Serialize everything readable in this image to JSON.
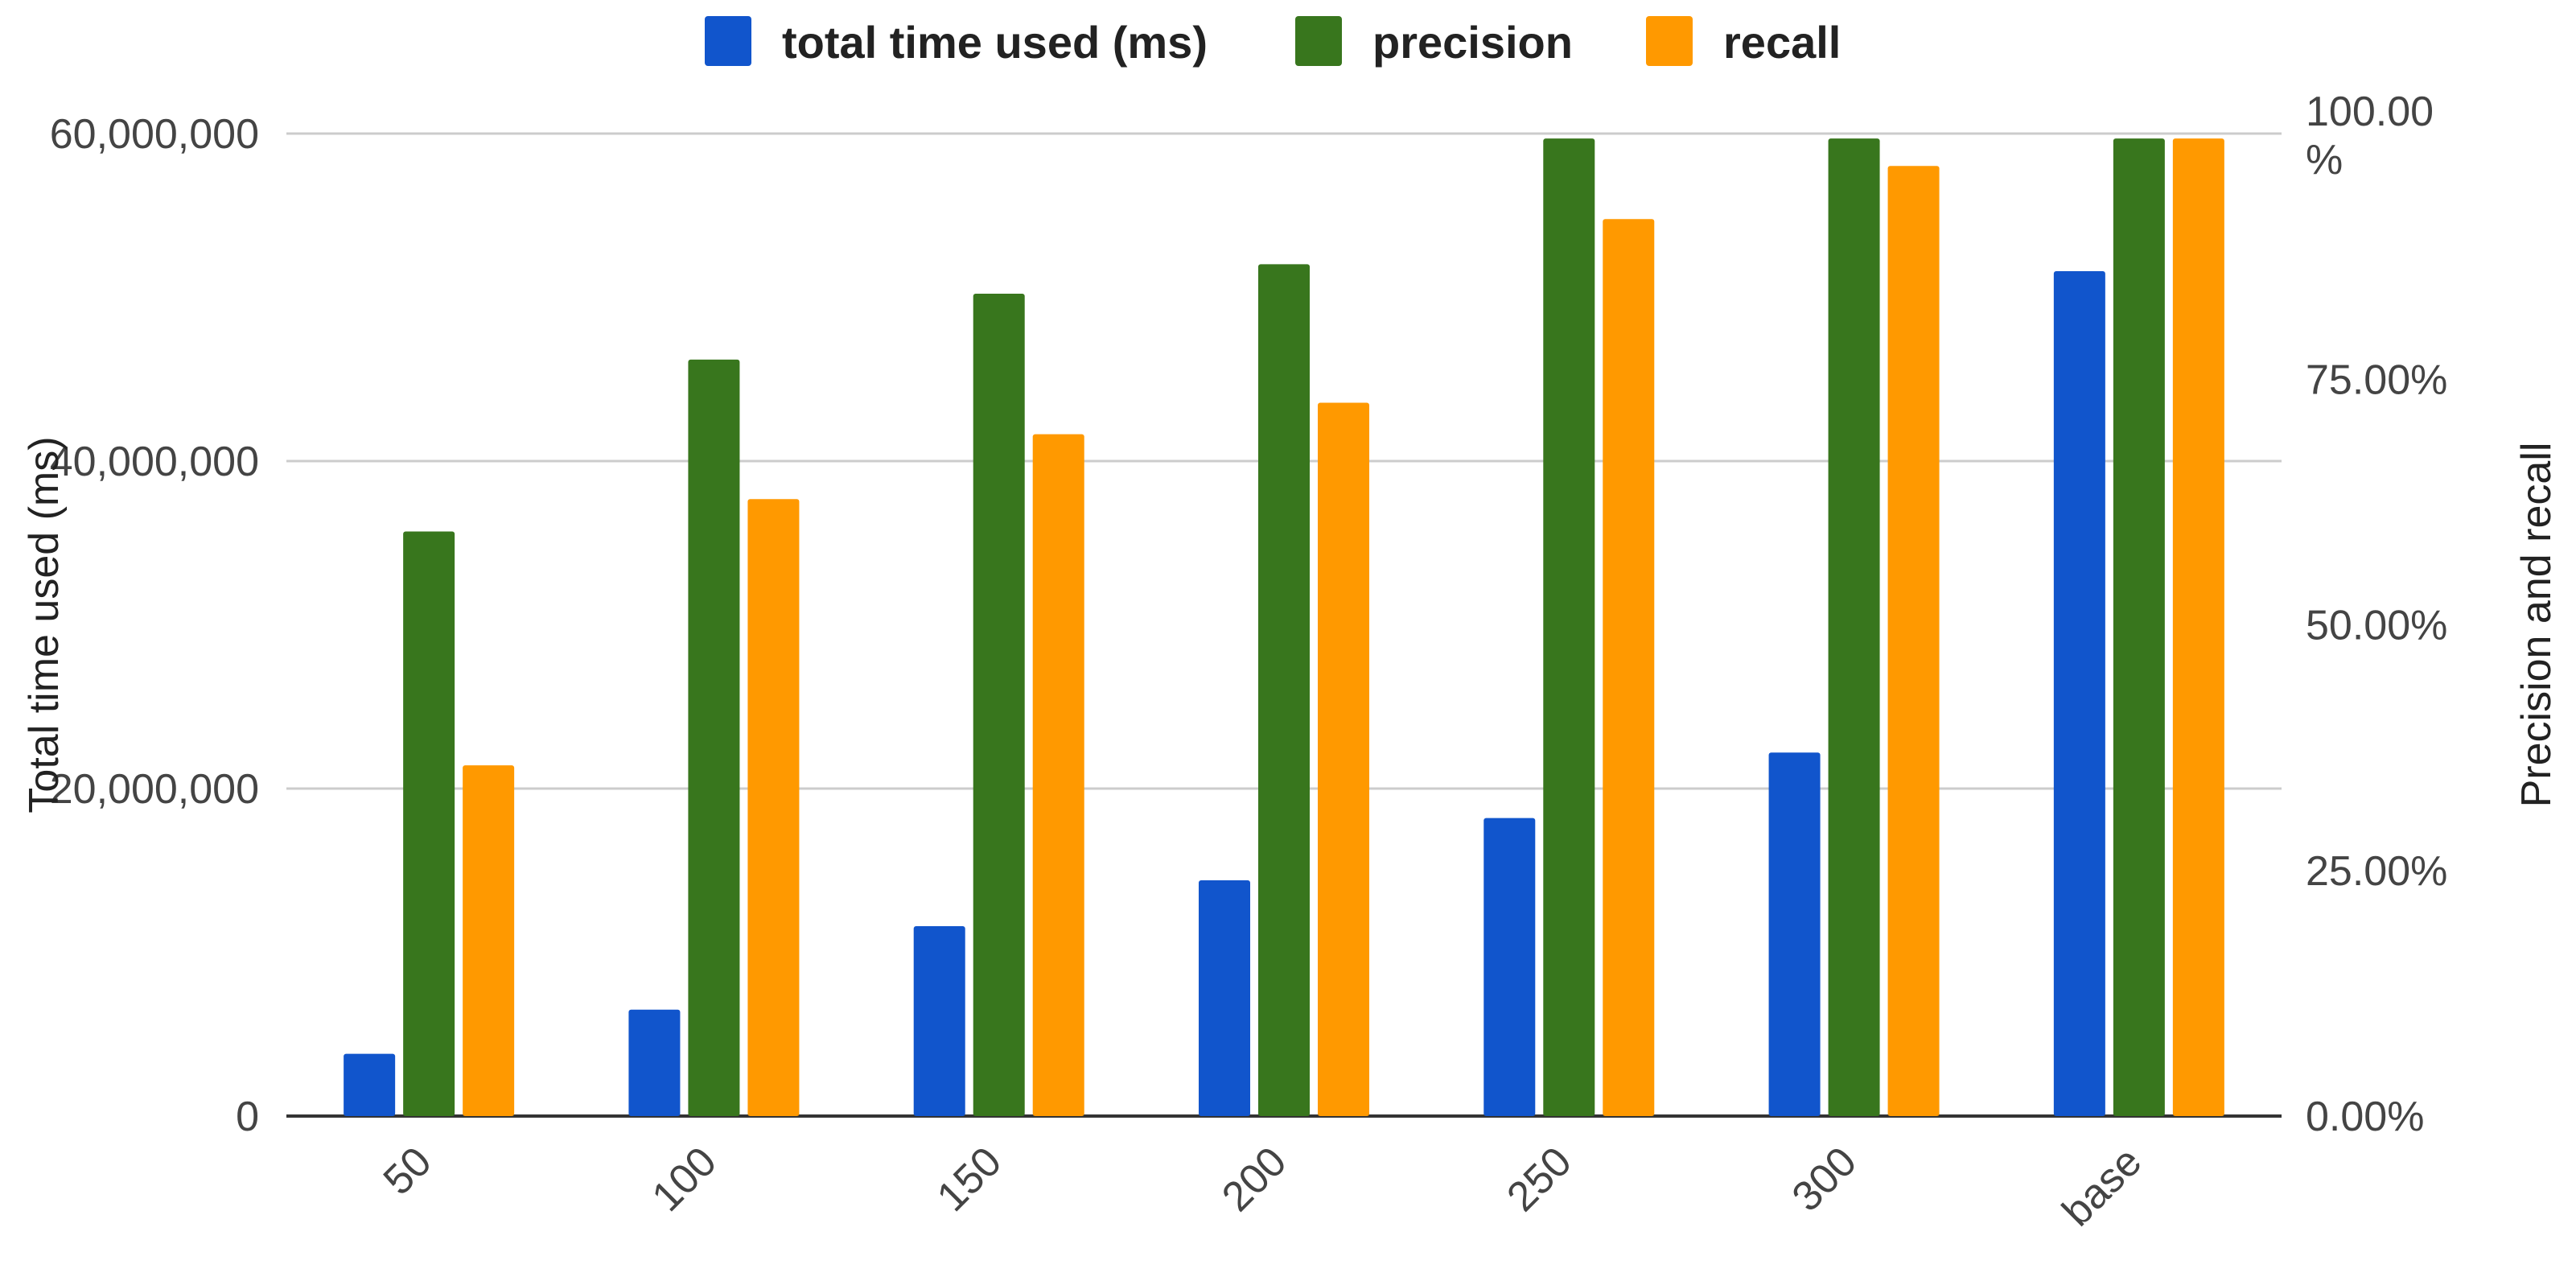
{
  "chart_data": {
    "type": "bar",
    "title": "",
    "categories": [
      "50",
      "100",
      "150",
      "200",
      "250",
      "300",
      "base"
    ],
    "series": [
      {
        "name": "total time used (ms)",
        "axis": "left",
        "color": "#1155cc",
        "values": [
          3800000,
          6500000,
          11600000,
          14400000,
          18200000,
          22200000,
          51600000
        ]
      },
      {
        "name": "precision",
        "axis": "right",
        "color": "#38761d",
        "values": [
          0.595,
          0.77,
          0.837,
          0.867,
          0.995,
          0.995,
          0.995
        ]
      },
      {
        "name": "recall",
        "axis": "right",
        "color": "#ff9900",
        "values": [
          0.357,
          0.628,
          0.694,
          0.726,
          0.913,
          0.967,
          0.995
        ]
      }
    ],
    "y_left": {
      "label": "Total time used (ms)",
      "ylim": [
        0,
        60000000
      ],
      "ticks": [
        "0",
        "20,000,000",
        "40,000,000",
        "60,000,000"
      ]
    },
    "y_right": {
      "label": "Precision and recall",
      "ylim": [
        0,
        1
      ],
      "ticks": [
        "0.00%",
        "25.00%",
        "50.00%",
        "75.00%",
        "100.00\n%"
      ]
    },
    "grid": true,
    "legend_position": "top-center"
  }
}
